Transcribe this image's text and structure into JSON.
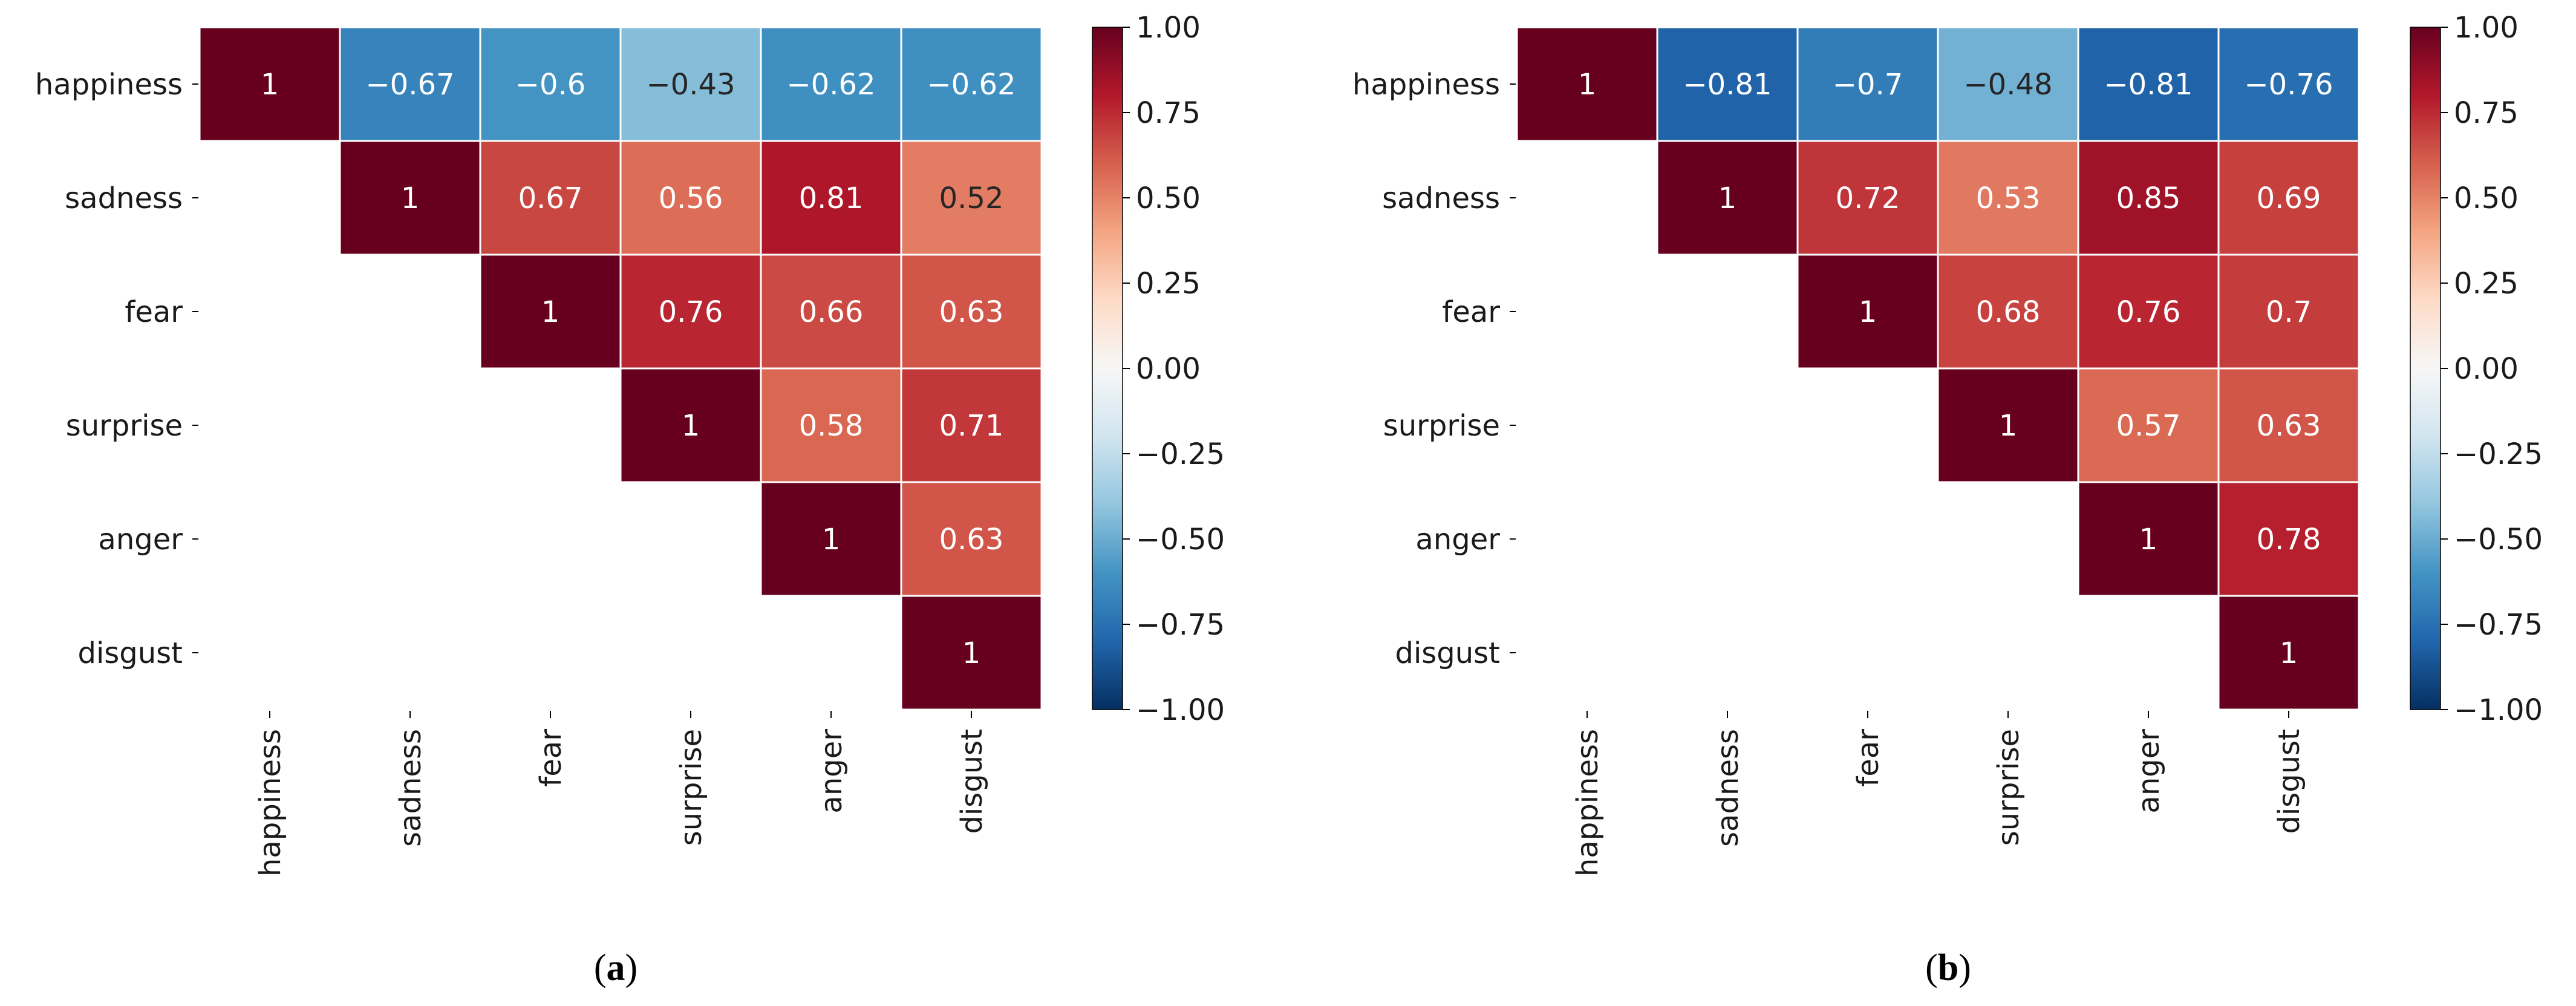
{
  "chart_data": [
    {
      "type": "heatmap",
      "panel_label": "a",
      "caption_open": "(",
      "caption_close": ")",
      "row_labels": [
        "happiness",
        "sadness",
        "fear",
        "surprise",
        "anger",
        "disgust"
      ],
      "col_labels": [
        "happiness",
        "sadness",
        "fear",
        "surprise",
        "anger",
        "disgust"
      ],
      "mask": "lower-triangle",
      "matrix": [
        [
          1,
          -0.67,
          -0.6,
          -0.43,
          -0.62,
          -0.62
        ],
        [
          null,
          1,
          0.67,
          0.56,
          0.81,
          0.52
        ],
        [
          null,
          null,
          1,
          0.76,
          0.66,
          0.63
        ],
        [
          null,
          null,
          null,
          1,
          0.58,
          0.71
        ],
        [
          null,
          null,
          null,
          null,
          1,
          0.63
        ],
        [
          null,
          null,
          null,
          null,
          null,
          1
        ]
      ],
      "colormap": "RdBu_r",
      "vmin": -1.0,
      "vmax": 1.0,
      "colorbar_ticks": [
        "1.00",
        "0.75",
        "0.50",
        "0.25",
        "0.00",
        "−0.25",
        "−0.50",
        "−0.75",
        "−1.00"
      ],
      "colorbar_tick_values": [
        1.0,
        0.75,
        0.5,
        0.25,
        0.0,
        -0.25,
        -0.5,
        -0.75,
        -1.0
      ]
    },
    {
      "type": "heatmap",
      "panel_label": "b",
      "caption_open": "(",
      "caption_close": ")",
      "row_labels": [
        "happiness",
        "sadness",
        "fear",
        "surprise",
        "anger",
        "disgust"
      ],
      "col_labels": [
        "happiness",
        "sadness",
        "fear",
        "surprise",
        "anger",
        "disgust"
      ],
      "mask": "lower-triangle",
      "matrix": [
        [
          1,
          -0.81,
          -0.7,
          -0.48,
          -0.81,
          -0.76
        ],
        [
          null,
          1,
          0.72,
          0.53,
          0.85,
          0.69
        ],
        [
          null,
          null,
          1,
          0.68,
          0.76,
          0.7
        ],
        [
          null,
          null,
          null,
          1,
          0.57,
          0.63
        ],
        [
          null,
          null,
          null,
          null,
          1,
          0.78
        ],
        [
          null,
          null,
          null,
          null,
          null,
          1
        ]
      ],
      "colormap": "RdBu_r",
      "vmin": -1.0,
      "vmax": 1.0,
      "colorbar_ticks": [
        "1.00",
        "0.75",
        "0.50",
        "0.25",
        "0.00",
        "−0.25",
        "−0.50",
        "−0.75",
        "−1.00"
      ],
      "colorbar_tick_values": [
        1.0,
        0.75,
        0.5,
        0.25,
        0.0,
        -0.25,
        -0.5,
        -0.75,
        -1.0
      ]
    }
  ]
}
